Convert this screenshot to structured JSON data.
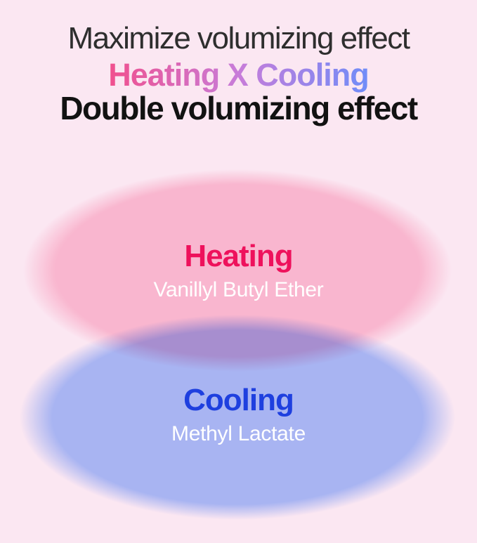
{
  "header": {
    "line1": "Maximize volumizing effect",
    "line2": "Heating X Cooling",
    "line3": "Double volumizing effect"
  },
  "diagram": {
    "heating": {
      "label": "Heating",
      "ingredient": "Vanillyl Butyl Ether"
    },
    "cooling": {
      "label": "Cooling",
      "ingredient": "Methyl Lactate"
    }
  },
  "colors": {
    "bg": "#FBE7F2",
    "headline": "#2E2E2E",
    "headline-bold": "#121212",
    "grad-start": "#F0508E",
    "grad-mid": "#C77CD9",
    "grad-end": "#6F8CF8",
    "pink-ellipse": "#FDC9DA",
    "blue-ellipse": "#ABC7FF",
    "overlap": "#A78ECF",
    "heating-label": "#EE115C",
    "cooling-label": "#1E3FDF",
    "ingredient": "#FFFFFF"
  }
}
